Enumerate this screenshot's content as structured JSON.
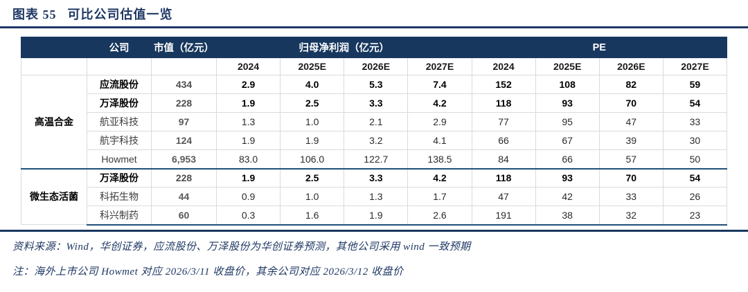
{
  "title": {
    "label": "图表 55",
    "text": "可比公司估值一览"
  },
  "theme": {
    "header_navy": "#17375E",
    "title_navy": "#1F3864",
    "group_separator_blue": "#1F4E79",
    "thin_separator_blue": "#2E74B5",
    "grid_gray": "#DADADA",
    "muted_text_gray": "#595959"
  },
  "table": {
    "header": {
      "company": "公司",
      "market_cap": "市值（亿元）",
      "net_profit": "归母净利润（亿元）",
      "pe": "PE",
      "years": [
        "2024",
        "2025E",
        "2026E",
        "2027E"
      ]
    },
    "groups": [
      {
        "name": "高温合金",
        "rows": [
          {
            "company": "应流股份",
            "market_cap": "434",
            "net_profit": [
              "2.9",
              "4.0",
              "5.3",
              "7.4"
            ],
            "pe": [
              "152",
              "108",
              "82",
              "59"
            ],
            "highlight": true
          },
          {
            "company": "万泽股份",
            "market_cap": "228",
            "net_profit": [
              "1.9",
              "2.5",
              "3.3",
              "4.2"
            ],
            "pe": [
              "118",
              "93",
              "70",
              "54"
            ],
            "highlight": true
          },
          {
            "company": "航亚科技",
            "market_cap": "97",
            "net_profit": [
              "1.3",
              "1.0",
              "2.1",
              "2.9"
            ],
            "pe": [
              "77",
              "95",
              "47",
              "33"
            ],
            "highlight": false
          },
          {
            "company": "航宇科技",
            "market_cap": "124",
            "net_profit": [
              "1.9",
              "1.9",
              "3.2",
              "4.1"
            ],
            "pe": [
              "66",
              "67",
              "39",
              "30"
            ],
            "highlight": false
          },
          {
            "company": "Howmet",
            "market_cap": "6,953",
            "net_profit": [
              "83.0",
              "106.0",
              "122.7",
              "138.5"
            ],
            "pe": [
              "84",
              "66",
              "57",
              "50"
            ],
            "highlight": false,
            "sep_above": true
          }
        ]
      },
      {
        "name": "微生态活菌",
        "rows": [
          {
            "company": "万泽股份",
            "market_cap": "228",
            "net_profit": [
              "1.9",
              "2.5",
              "3.3",
              "4.2"
            ],
            "pe": [
              "118",
              "93",
              "70",
              "54"
            ],
            "highlight": true
          },
          {
            "company": "科拓生物",
            "market_cap": "44",
            "net_profit": [
              "0.9",
              "1.0",
              "1.3",
              "1.7"
            ],
            "pe": [
              "47",
              "42",
              "33",
              "26"
            ],
            "highlight": false
          },
          {
            "company": "科兴制药",
            "market_cap": "60",
            "net_profit": [
              "0.3",
              "1.6",
              "1.9",
              "2.6"
            ],
            "pe": [
              "191",
              "38",
              "32",
              "23"
            ],
            "highlight": false
          }
        ]
      }
    ]
  },
  "notes": {
    "source": "资料来源：Wind，华创证券，应流股份、万泽股份为华创证券预测，其他公司采用 wind 一致预期",
    "closing": "注：海外上市公司 Howmet 对应 2026/3/11 收盘价，其余公司对应 2026/3/12 收盘价"
  }
}
